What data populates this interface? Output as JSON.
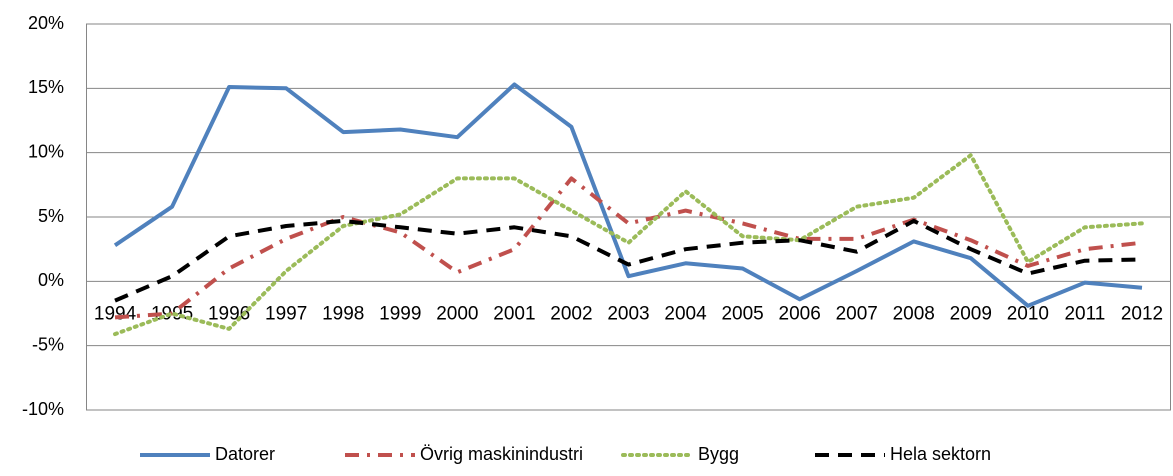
{
  "chart_data": {
    "type": "line",
    "categories": [
      "1994",
      "1995",
      "1996",
      "1997",
      "1998",
      "1999",
      "2000",
      "2001",
      "2002",
      "2003",
      "2004",
      "2005",
      "2006",
      "2007",
      "2008",
      "2009",
      "2010",
      "2011",
      "2012"
    ],
    "series": [
      {
        "name": "Datorer",
        "color": "#4f81bd",
        "dash": "solid",
        "values": [
          2.8,
          5.8,
          15.1,
          15.0,
          11.6,
          11.8,
          11.2,
          15.3,
          12.0,
          0.4,
          1.4,
          1.0,
          -1.4,
          0.8,
          3.1,
          1.8,
          -1.9,
          -0.1,
          -0.5
        ]
      },
      {
        "name": "Övrig maskinindustri",
        "color": "#c0504d",
        "dash": "dashdot",
        "values": [
          -2.8,
          -2.5,
          1.0,
          3.3,
          5.0,
          3.8,
          0.7,
          2.5,
          8.0,
          4.5,
          5.5,
          4.5,
          3.3,
          3.3,
          4.8,
          3.2,
          1.2,
          2.5,
          3.0
        ]
      },
      {
        "name": "Bygg",
        "color": "#9bbb59",
        "dash": "dot",
        "values": [
          -4.1,
          -2.5,
          -3.7,
          0.8,
          4.3,
          5.2,
          8.0,
          8.0,
          5.5,
          3.0,
          7.0,
          3.5,
          3.2,
          5.8,
          6.5,
          9.8,
          1.5,
          4.2,
          4.5
        ]
      },
      {
        "name": "Hela sektorn",
        "color": "#000000",
        "dash": "dash",
        "values": [
          -1.5,
          0.4,
          3.5,
          4.3,
          4.7,
          4.2,
          3.7,
          4.2,
          3.5,
          1.3,
          2.5,
          3.0,
          3.2,
          2.3,
          4.7,
          2.5,
          0.6,
          1.6,
          1.7
        ]
      }
    ],
    "ylim": [
      -10,
      20
    ],
    "yticks": [
      {
        "value": -10,
        "label": "-10%"
      },
      {
        "value": -5,
        "label": "-5%"
      },
      {
        "value": 0,
        "label": "0%"
      },
      {
        "value": 5,
        "label": "5%"
      },
      {
        "value": 10,
        "label": "10%"
      },
      {
        "value": 15,
        "label": "15%"
      },
      {
        "value": 20,
        "label": "20%"
      }
    ],
    "grid": true,
    "legend": "bottom"
  }
}
